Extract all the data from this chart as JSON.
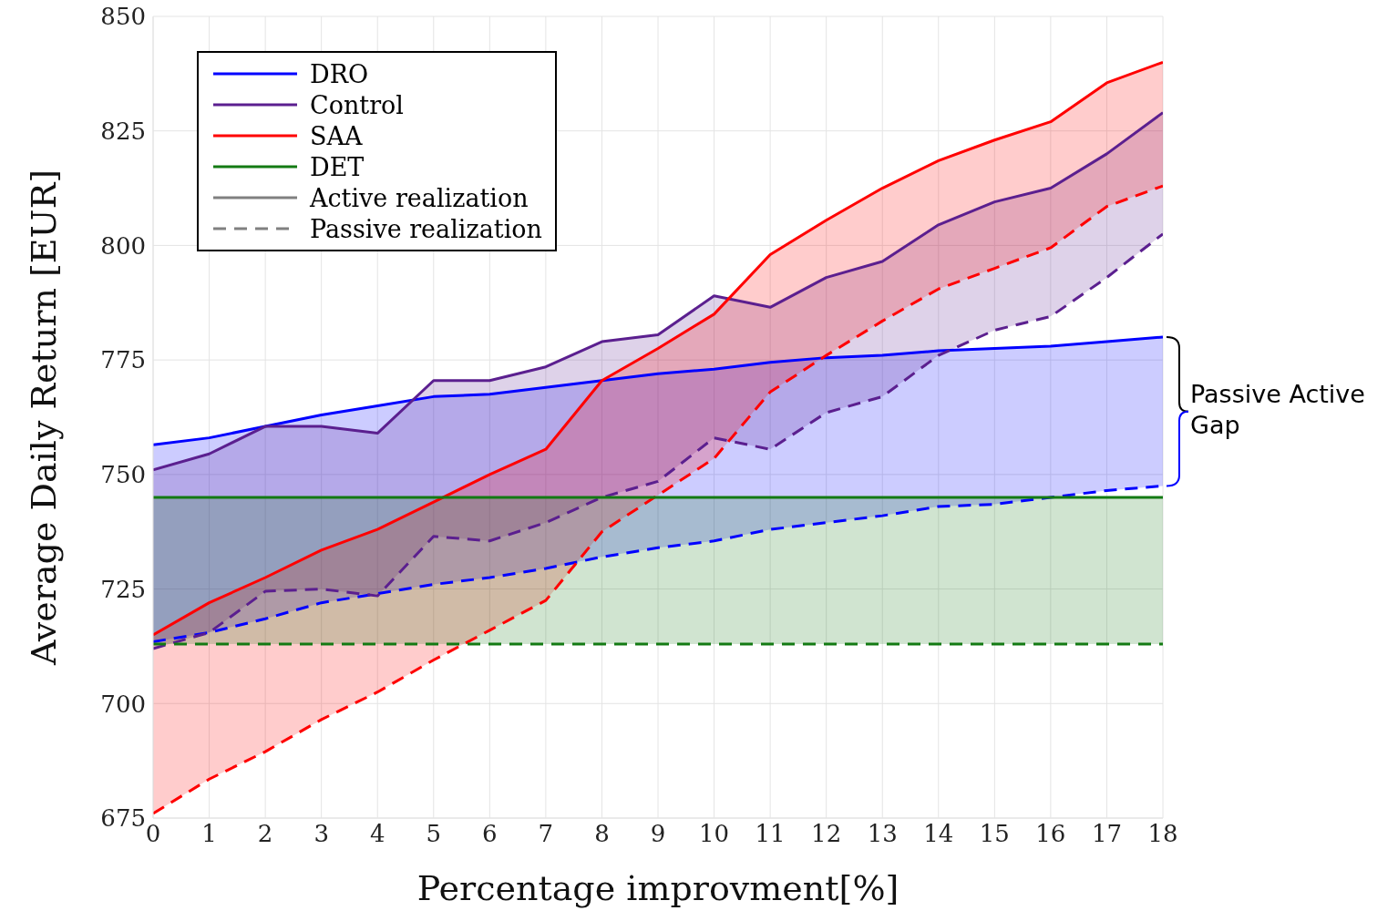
{
  "chart_data": {
    "type": "line",
    "xlabel": "Percentage improvment[%]",
    "ylabel": "Average Daily Return [EUR]",
    "x": [
      0,
      1,
      2,
      3,
      4,
      5,
      6,
      7,
      8,
      9,
      10,
      11,
      12,
      13,
      14,
      15,
      16,
      17,
      18
    ],
    "xlim": [
      0,
      18
    ],
    "xticks": [
      0,
      1,
      2,
      3,
      4,
      5,
      6,
      7,
      8,
      9,
      10,
      11,
      12,
      13,
      14,
      15,
      16,
      17,
      18
    ],
    "ylim": [
      675,
      850
    ],
    "yticks": [
      675,
      700,
      725,
      750,
      775,
      800,
      825,
      850
    ],
    "grid": true,
    "legend": "top left",
    "marker": "none",
    "annotations": [
      "Passive Active Gap"
    ],
    "series": [
      {
        "name": "DRO",
        "color": "#0000ff",
        "line_style": "solid",
        "values": [
          756.5,
          758,
          760.5,
          763,
          765,
          767,
          767.5,
          769,
          770.5,
          772,
          773,
          774.5,
          775.5,
          776,
          777,
          777.5,
          778,
          779,
          780
        ],
        "lower": [
          713.5,
          715.5,
          718.5,
          722,
          724,
          726,
          727.5,
          729.5,
          732,
          734,
          735.5,
          738,
          739.5,
          741,
          743,
          743.5,
          745,
          746.5,
          747.5
        ],
        "upper": [
          756.5,
          758,
          760.5,
          763,
          765,
          767,
          767.5,
          769,
          770.5,
          772,
          773,
          774.5,
          775.5,
          776,
          777,
          777.5,
          778,
          779,
          780
        ]
      },
      {
        "color": "#0000ff",
        "line_style": "dashed",
        "values": [
          713.5,
          715.5,
          718.5,
          722,
          724,
          726,
          727.5,
          729.5,
          732,
          734,
          735.5,
          738,
          739.5,
          741,
          743,
          743.5,
          745,
          746.5,
          747.5
        ]
      },
      {
        "name": "Control",
        "color": "#5b1f8f",
        "line_style": "solid",
        "values": [
          751,
          754.5,
          760.5,
          760.5,
          759,
          770.5,
          770.5,
          773.5,
          779,
          780.5,
          789,
          786.5,
          793,
          796.5,
          804.5,
          809.5,
          812.5,
          820,
          829
        ],
        "lower": [
          712,
          715.5,
          724.5,
          725,
          723.5,
          736.5,
          735.5,
          739.5,
          745,
          748.5,
          758,
          755.5,
          763.5,
          767,
          776,
          781.5,
          784.5,
          793,
          802.5
        ],
        "upper": [
          751,
          754.5,
          760.5,
          760.5,
          759,
          770.5,
          770.5,
          773.5,
          779,
          780.5,
          789,
          786.5,
          793,
          796.5,
          804.5,
          809.5,
          812.5,
          820,
          829
        ]
      },
      {
        "color": "#5b1f8f",
        "line_style": "dashed",
        "values": [
          712,
          715.5,
          724.5,
          725,
          723.5,
          736.5,
          735.5,
          739.5,
          745,
          748.5,
          758,
          755.5,
          763.5,
          767,
          776,
          781.5,
          784.5,
          793,
          802.5
        ]
      },
      {
        "name": "SAA",
        "color": "#ff0000",
        "line_style": "solid",
        "values": [
          715,
          722,
          727.5,
          733.5,
          738,
          744,
          750,
          755.5,
          770.5,
          777.5,
          785,
          798,
          805.5,
          812.5,
          818.5,
          823,
          827,
          835.5,
          840
        ],
        "lower": [
          676,
          683.5,
          689.5,
          696.5,
          702.5,
          709.5,
          716,
          722.5,
          737.5,
          745.5,
          753.5,
          768,
          776,
          783.5,
          790.5,
          795,
          799.5,
          808.5,
          813
        ],
        "upper": [
          715,
          722,
          727.5,
          733.5,
          738,
          744,
          750,
          755.5,
          770.5,
          777.5,
          785,
          798,
          805.5,
          812.5,
          818.5,
          823,
          827,
          835.5,
          840
        ]
      },
      {
        "color": "#ff0000",
        "line_style": "dashed",
        "values": [
          676,
          683.5,
          689.5,
          696.5,
          702.5,
          709.5,
          716,
          722.5,
          737.5,
          745.5,
          753.5,
          768,
          776,
          783.5,
          790.5,
          795,
          799.5,
          808.5,
          813
        ]
      },
      {
        "name": "DET",
        "color": "#137a13",
        "line_style": "solid",
        "values": [
          745,
          745,
          745,
          745,
          745,
          745,
          745,
          745,
          745,
          745,
          745,
          745,
          745,
          745,
          745,
          745,
          745,
          745,
          745
        ],
        "lower": [
          713,
          713,
          713,
          713,
          713,
          713,
          713,
          713,
          713,
          713,
          713,
          713,
          713,
          713,
          713,
          713,
          713,
          713,
          713
        ],
        "upper": [
          745,
          745,
          745,
          745,
          745,
          745,
          745,
          745,
          745,
          745,
          745,
          745,
          745,
          745,
          745,
          745,
          745,
          745,
          745
        ]
      },
      {
        "color": "#137a13",
        "line_style": "dashed",
        "values": [
          713,
          713,
          713,
          713,
          713,
          713,
          713,
          713,
          713,
          713,
          713,
          713,
          713,
          713,
          713,
          713,
          713,
          713,
          713
        ]
      },
      {
        "name": "Active realization",
        "color": "#808080",
        "line_style": "solid",
        "values": [
          null,
          null,
          null,
          null,
          null,
          null,
          null,
          null,
          null,
          null,
          null,
          null,
          null,
          null,
          null,
          null,
          null,
          null,
          null
        ]
      },
      {
        "name": "Passive realization",
        "color": "#808080",
        "line_style": "dashed",
        "values": [
          null,
          null,
          null,
          null,
          null,
          null,
          null,
          null,
          null,
          null,
          null,
          null,
          null,
          null,
          null,
          null,
          null,
          null,
          null
        ]
      }
    ]
  }
}
